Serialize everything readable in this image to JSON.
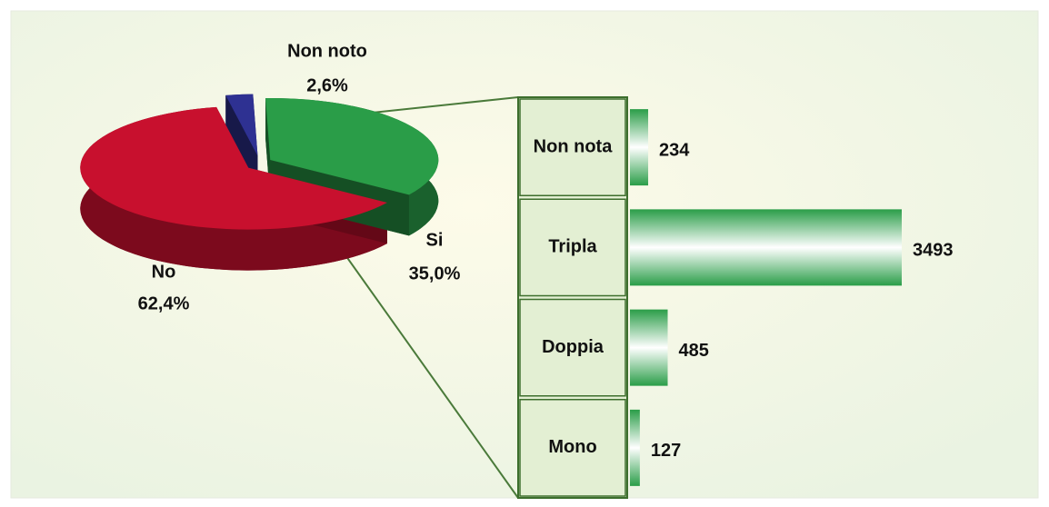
{
  "chart_data": [
    {
      "type": "pie",
      "categories": [
        "No",
        "Non noto",
        "Si"
      ],
      "values": [
        62.4,
        2.6,
        35.0
      ],
      "value_labels": [
        "62,4%",
        "2,6%",
        "35,0%"
      ],
      "colors": [
        "#c8102e",
        "#2e3192",
        "#2a9d48"
      ]
    },
    {
      "type": "bar",
      "orientation": "horizontal",
      "categories": [
        "Non nota",
        "Tripla",
        "Doppia",
        "Mono"
      ],
      "values": [
        234,
        3493,
        485,
        127
      ],
      "color": "#2a9d48"
    }
  ]
}
